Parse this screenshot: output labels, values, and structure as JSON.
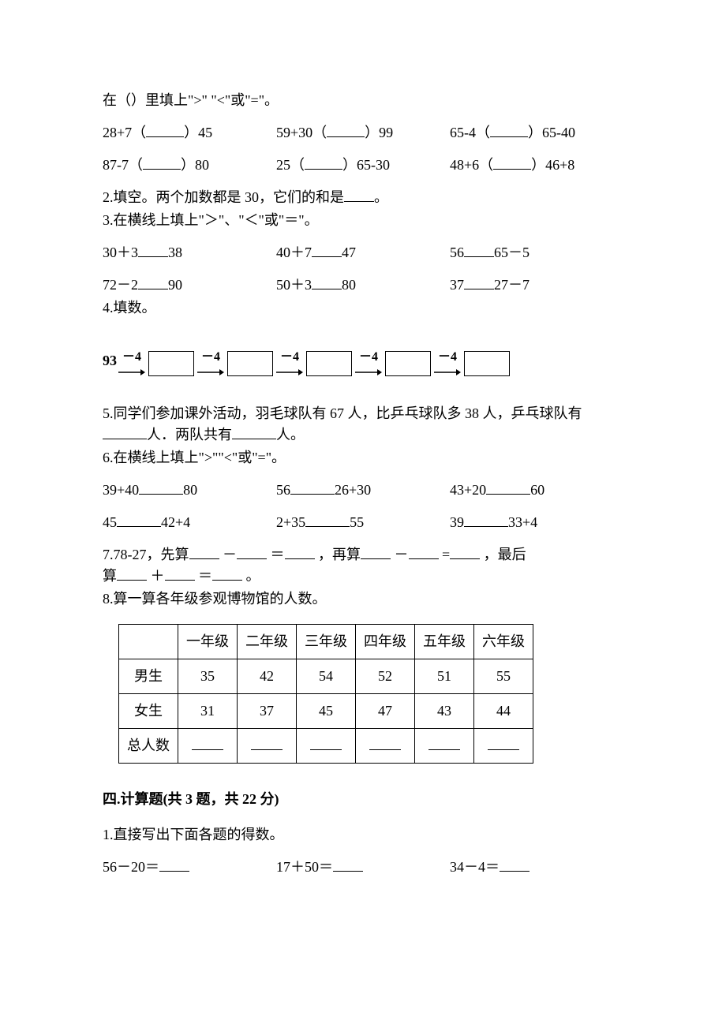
{
  "q1": {
    "prompt": "在（）里填上\">\"  \"<\"或\"=\"。",
    "rows": [
      [
        {
          "l": "28+7（",
          "r": "）45"
        },
        {
          "l": "59+30（",
          "r": "）99"
        },
        {
          "l": "65-4（",
          "r": "）65-40"
        }
      ],
      [
        {
          "l": "87-7（",
          "r": "）80"
        },
        {
          "l": "25（",
          "r": "）65-30"
        },
        {
          "l": "48+6（",
          "r": "）46+8"
        }
      ]
    ]
  },
  "q2": {
    "label": "2.填空。两个加数都是 30，它们的和是",
    "tail": "。"
  },
  "q3": {
    "label": "3.在横线上填上\"＞\"、\"＜\"或\"＝\"。",
    "rows": [
      [
        {
          "a": "30＋3",
          "b": "38"
        },
        {
          "a": "40＋7",
          "b": "47"
        },
        {
          "a": "56",
          "b": "65－5"
        }
      ],
      [
        {
          "a": "72－2",
          "b": "90"
        },
        {
          "a": "50＋3",
          "b": "80"
        },
        {
          "a": "37",
          "b": "27－7"
        }
      ]
    ]
  },
  "q4": {
    "label": "4.填数。",
    "start": "93",
    "op": "－4",
    "box_count": 5
  },
  "q5": {
    "line1a": "5.同学们参加课外活动，羽毛球队有 67 人，比乒乓球队多 38 人，乒乓球队有",
    "line2a": "人．两队共有",
    "line2b": "人。"
  },
  "q6": {
    "label": "6.在横线上填上\">\"\"<\"或\"=\"。",
    "rows": [
      [
        {
          "a": "39+40",
          "b": "80"
        },
        {
          "a": "56",
          "b": "26+30"
        },
        {
          "a": "43+20",
          "b": "60"
        }
      ],
      [
        {
          "a": "45",
          "b": "42+4"
        },
        {
          "a": "2+35",
          "b": "55"
        },
        {
          "a": "39",
          "b": "33+4"
        }
      ]
    ]
  },
  "q7": {
    "text1": "7.78-27，先算",
    "text2": "－",
    "text3": "＝",
    "text4": "，再算",
    "text5": "－",
    "text6": "=",
    "text7": "，最后",
    "text8": "算",
    "text9": "＋",
    "text10": "＝",
    "text11": "。"
  },
  "q8": {
    "label": "8.算一算各年级参观博物馆的人数。",
    "columns": [
      "",
      "一年级",
      "二年级",
      "三年级",
      "四年级",
      "五年级",
      "六年级"
    ],
    "row_male_label": "男生",
    "row_male": [
      "35",
      "42",
      "54",
      "52",
      "51",
      "55"
    ],
    "row_female_label": "女生",
    "row_female": [
      "31",
      "37",
      "45",
      "47",
      "43",
      "44"
    ],
    "row_total_label": "总人数"
  },
  "section4": {
    "heading": "四.计算题(共 3 题，共 22 分)",
    "q1_label": "1.直接写出下面各题的得数。",
    "row": [
      "56－20＝",
      "17＋50＝",
      "34－4＝"
    ]
  }
}
